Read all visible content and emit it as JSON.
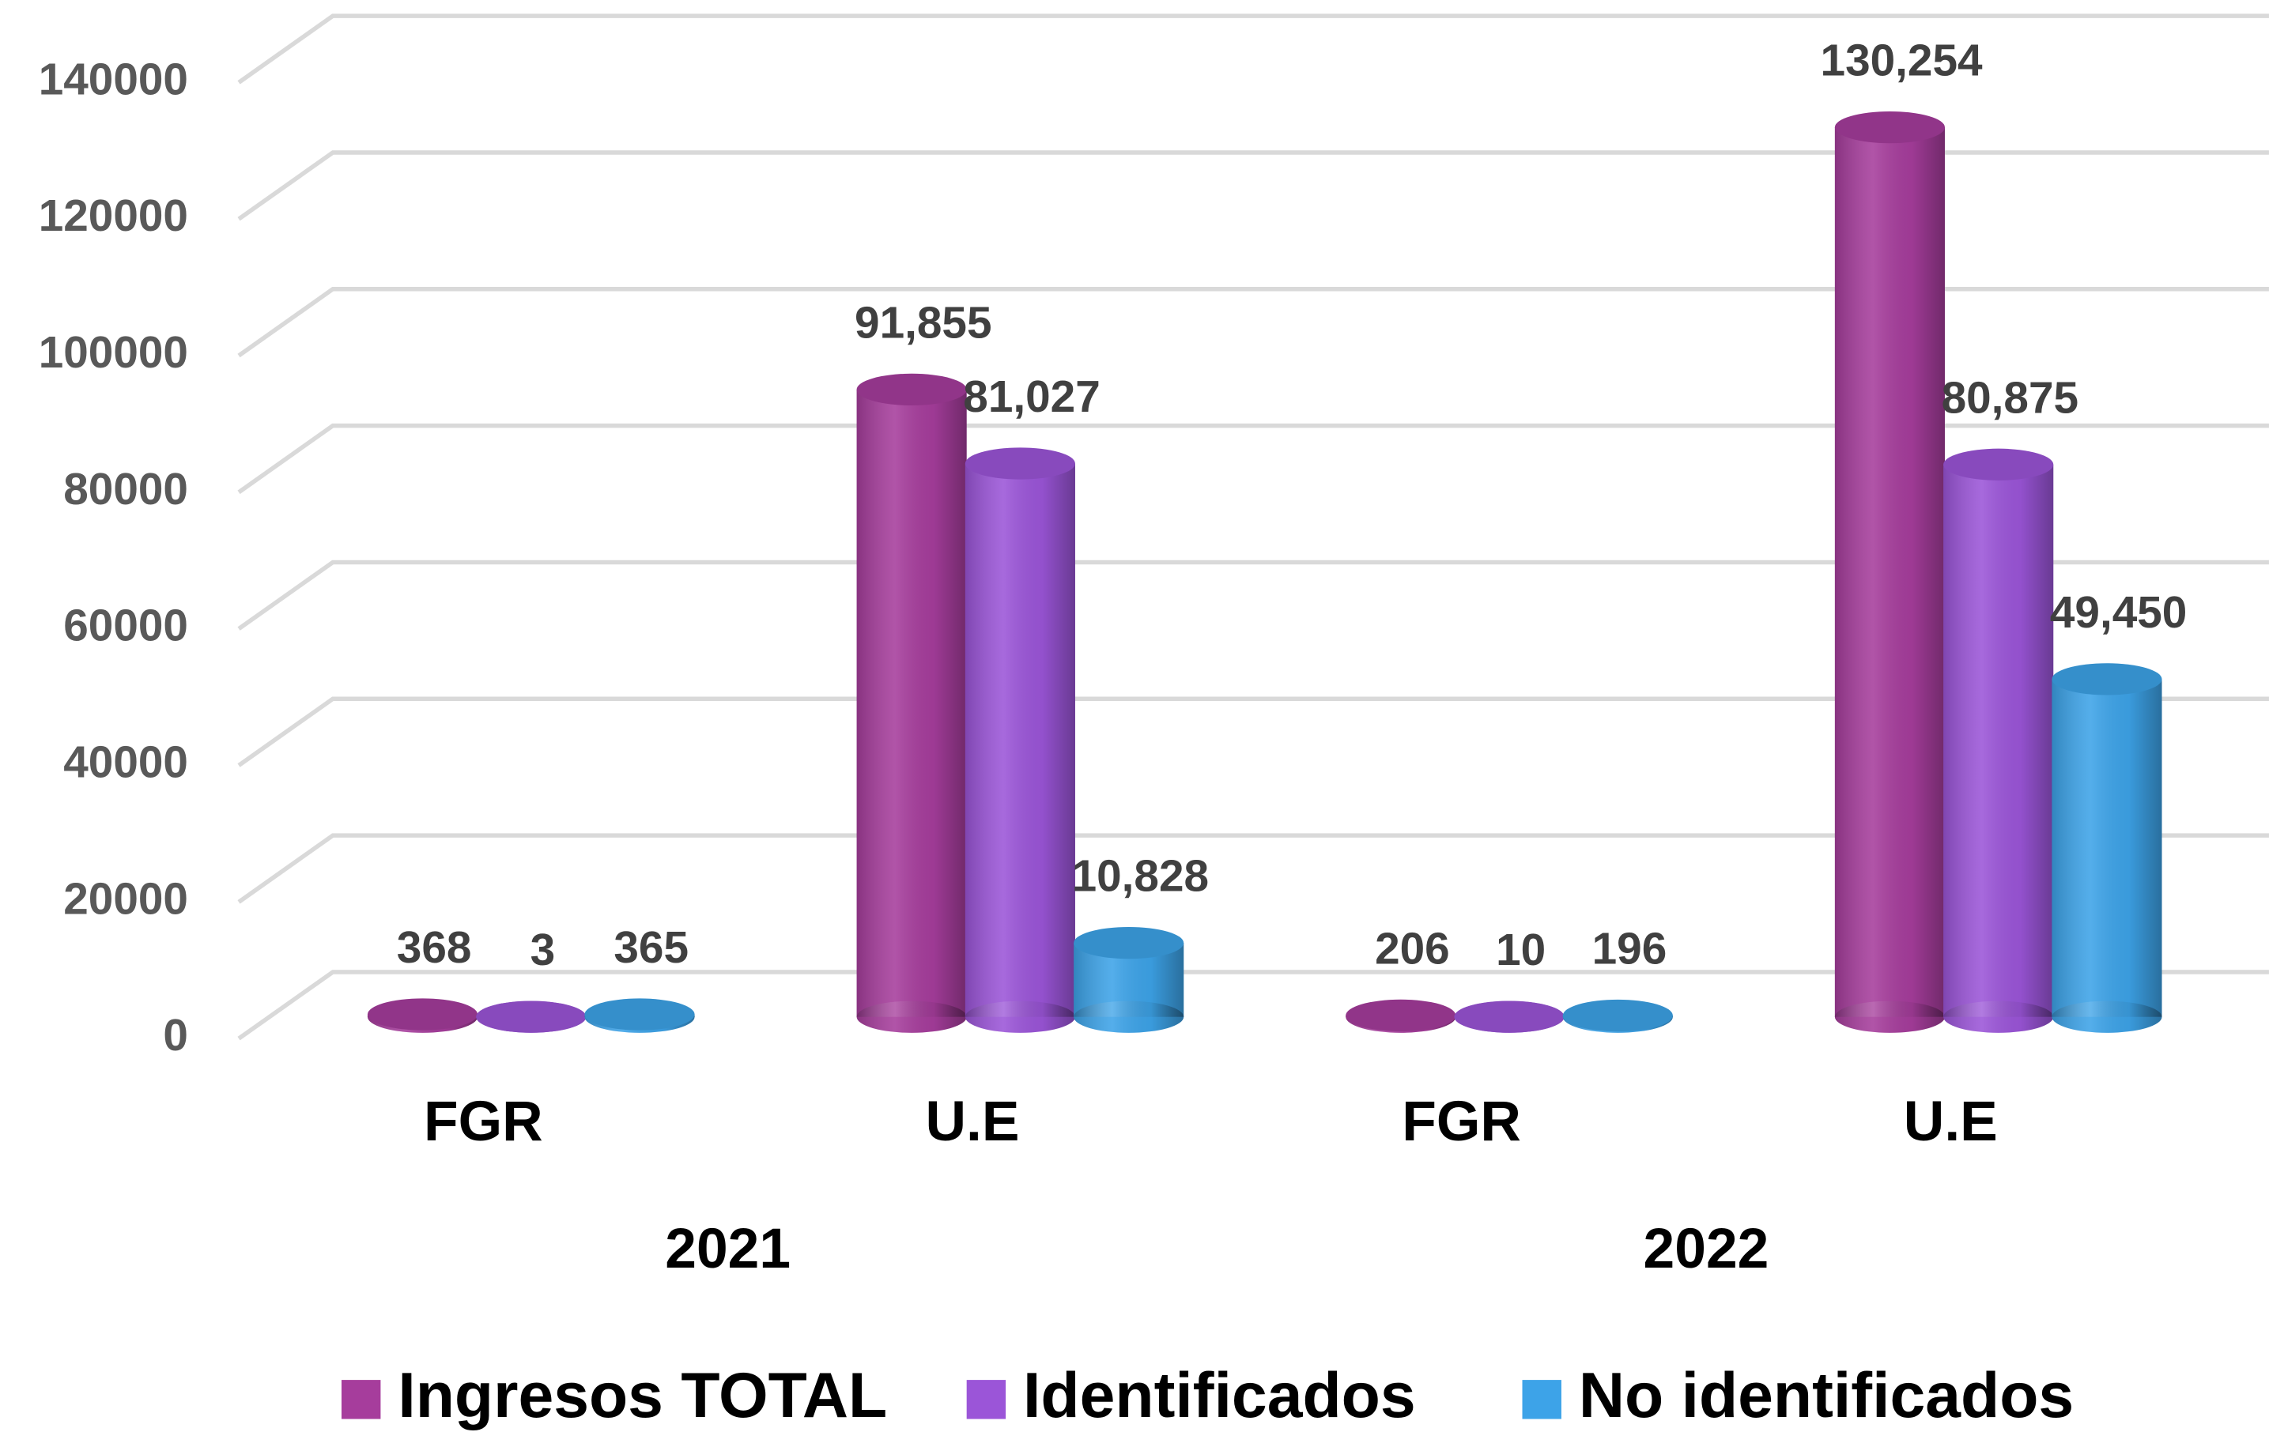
{
  "chart_data": {
    "type": "bar",
    "categories": [
      "FGR",
      "U.E",
      "FGR",
      "U.E"
    ],
    "groups": [
      "2021",
      "2022"
    ],
    "series": [
      {
        "name": "Ingresos TOTAL",
        "color": "#a63d9c",
        "values": [
          368,
          91855,
          206,
          130254
        ],
        "value_labels": [
          "368",
          "91,855",
          "206",
          "130,254"
        ]
      },
      {
        "name": "Identificados",
        "color": "#9b55d8",
        "values": [
          3,
          81027,
          10,
          80875
        ],
        "value_labels": [
          "3",
          "81,027",
          "10",
          "80,875"
        ]
      },
      {
        "name": "No identificados",
        "color": "#3da3e8",
        "values": [
          365,
          10828,
          196,
          49450
        ],
        "value_labels": [
          "365",
          "10,828",
          "196",
          "49,450"
        ]
      }
    ],
    "ylim": [
      0,
      140000
    ],
    "yticks": [
      0,
      20000,
      40000,
      60000,
      80000,
      100000,
      120000,
      140000
    ],
    "grid": true,
    "legend": "bottom"
  }
}
